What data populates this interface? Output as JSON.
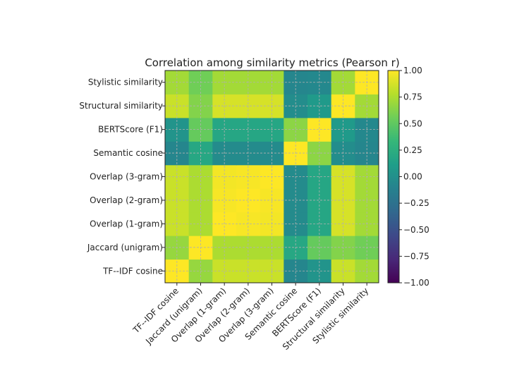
{
  "chart_data": {
    "type": "heatmap",
    "title": "Correlation among similarity metrics (Pearson r)",
    "x_labels": [
      "TF--IDF cosine",
      "Jaccard (unigram)",
      "Overlap (1-gram)",
      "Overlap (2-gram)",
      "Overlap (3-gram)",
      "Semantic cosine",
      "BERTScore (F1)",
      "Structural similarity",
      "Stylistic similarity"
    ],
    "y_labels": [
      "TF--IDF cosine",
      "Jaccard (unigram)",
      "Overlap (1-gram)",
      "Overlap (2-gram)",
      "Overlap (3-gram)",
      "Semantic cosine",
      "BERTScore (F1)",
      "Structural similarity",
      "Stylistic similarity"
    ],
    "y_order": "bottom-to-top",
    "values": [
      [
        1.0,
        0.68,
        0.84,
        0.84,
        0.84,
        -0.08,
        0.03,
        0.84,
        0.72
      ],
      [
        0.68,
        1.0,
        0.75,
        0.75,
        0.75,
        0.19,
        0.52,
        0.62,
        0.56
      ],
      [
        0.84,
        0.75,
        1.0,
        0.98,
        0.97,
        -0.04,
        0.18,
        0.88,
        0.72
      ],
      [
        0.84,
        0.75,
        0.98,
        1.0,
        0.98,
        -0.04,
        0.18,
        0.88,
        0.72
      ],
      [
        0.84,
        0.75,
        0.97,
        0.98,
        1.0,
        -0.04,
        0.18,
        0.88,
        0.72
      ],
      [
        -0.08,
        0.19,
        -0.04,
        -0.04,
        -0.04,
        1.0,
        0.65,
        -0.02,
        -0.08
      ],
      [
        0.03,
        0.52,
        0.18,
        0.18,
        0.18,
        0.65,
        1.0,
        0.08,
        -0.06
      ],
      [
        0.84,
        0.62,
        0.88,
        0.88,
        0.88,
        -0.02,
        0.08,
        1.0,
        0.72
      ],
      [
        0.72,
        0.56,
        0.72,
        0.72,
        0.72,
        -0.08,
        -0.06,
        0.72,
        1.0
      ]
    ],
    "colormap": "viridis",
    "vmin": -1.0,
    "vmax": 1.0,
    "colorbar_ticks": [
      "1.00",
      "0.75",
      "0.50",
      "0.25",
      "0.00",
      "−0.25",
      "−0.50",
      "−0.75",
      "−1.00"
    ],
    "grid": true
  }
}
